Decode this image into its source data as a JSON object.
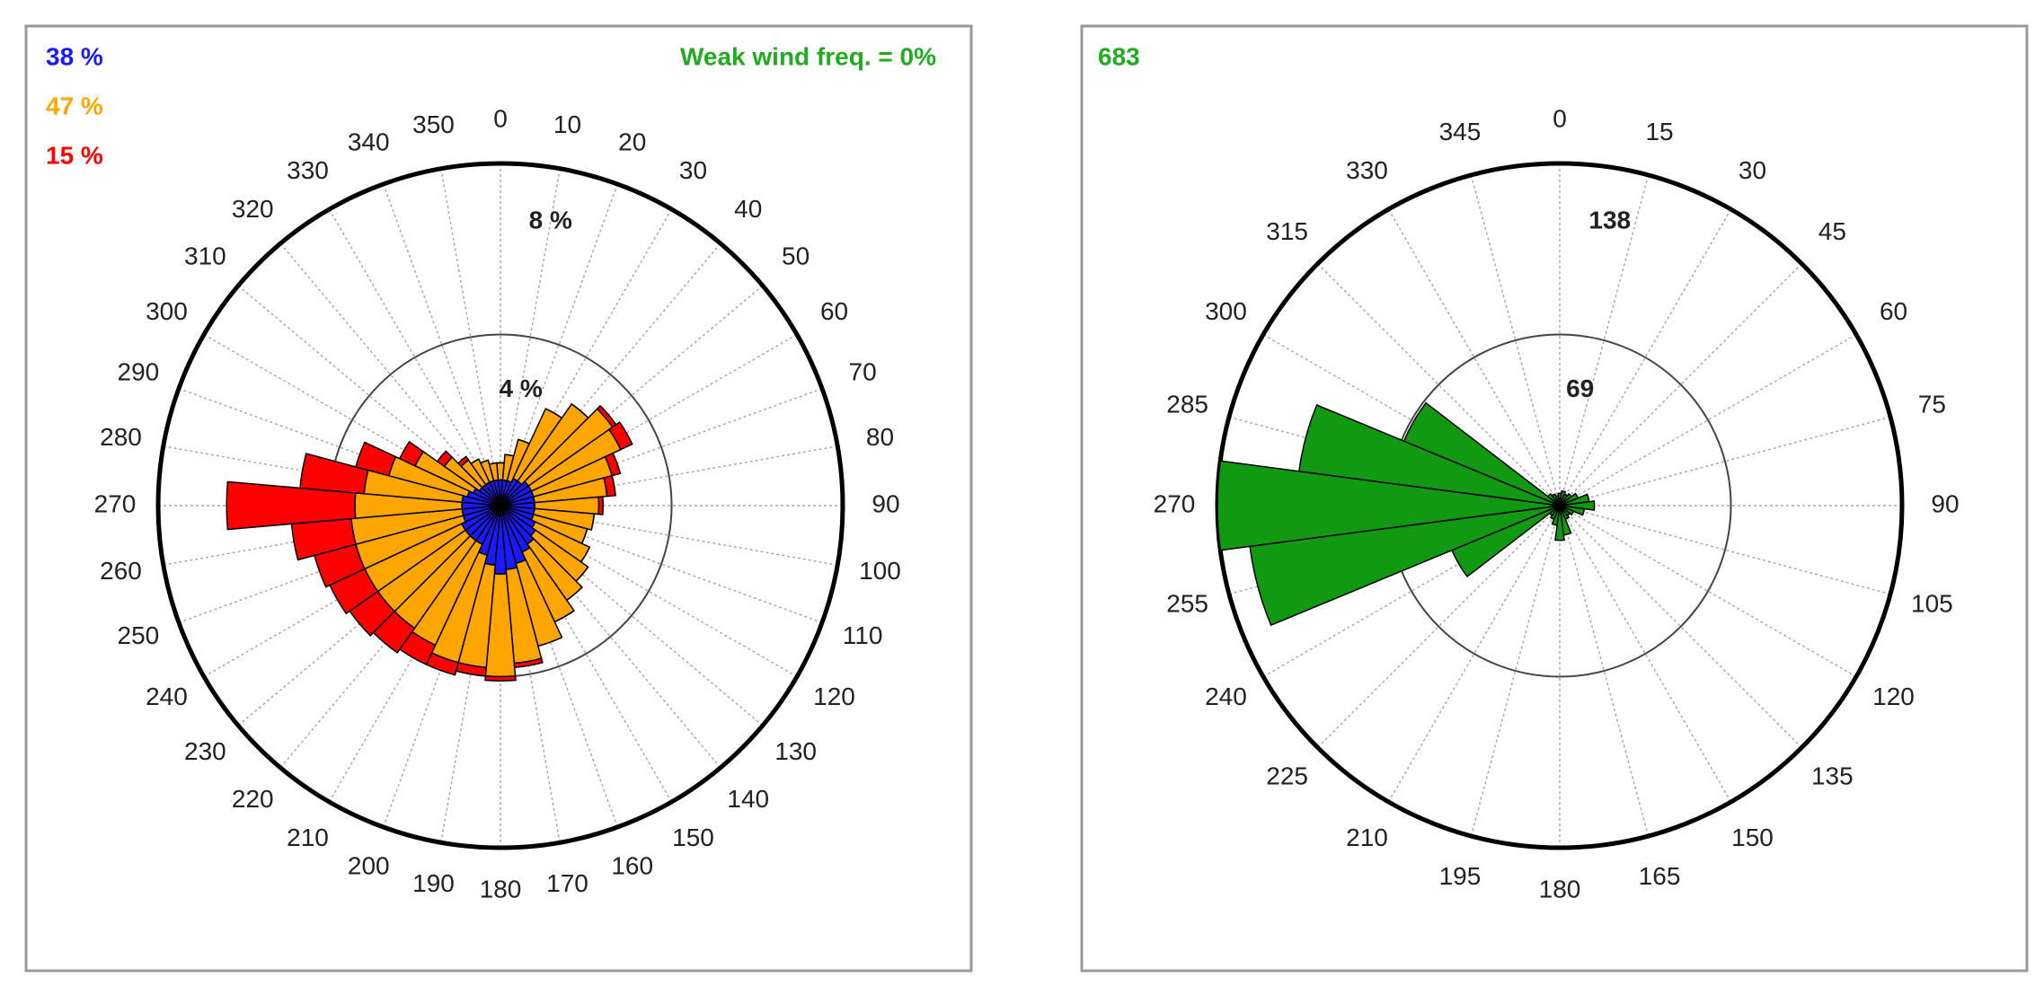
{
  "chart_data": [
    {
      "type": "windrose",
      "annotation": "Weak wind freq. = 0%",
      "categories": [
        0,
        10,
        20,
        30,
        40,
        50,
        60,
        70,
        80,
        90,
        100,
        110,
        120,
        130,
        140,
        150,
        160,
        170,
        180,
        190,
        200,
        210,
        220,
        230,
        240,
        250,
        260,
        270,
        280,
        290,
        300,
        310,
        320,
        330,
        340,
        350
      ],
      "series": [
        {
          "name": "38 %",
          "color": "#1a1aff",
          "values": [
            0.6,
            0.6,
            0.6,
            0.7,
            0.7,
            0.8,
            0.8,
            0.8,
            0.8,
            0.8,
            0.8,
            0.8,
            0.9,
            1.0,
            1.1,
            1.2,
            1.4,
            1.5,
            1.6,
            1.4,
            1.2,
            1.0,
            1.0,
            1.0,
            1.0,
            0.9,
            0.9,
            0.9,
            0.9,
            0.8,
            0.7,
            0.6,
            0.6,
            0.6,
            0.6,
            0.6
          ]
        },
        {
          "name": "47 %",
          "color": "#ffa500",
          "values": [
            0.4,
            0.6,
            1.0,
            1.8,
            2.2,
            2.4,
            2.3,
            1.9,
            1.7,
            1.5,
            1.4,
            1.3,
            1.4,
            1.5,
            1.6,
            1.8,
            2.0,
            2.2,
            2.4,
            2.4,
            2.6,
            2.6,
            2.5,
            2.5,
            2.5,
            2.6,
            2.6,
            2.5,
            2.3,
            1.9,
            1.5,
            1.0,
            0.7,
            0.6,
            0.5,
            0.4
          ]
        },
        {
          "name": "15 %",
          "color": "#ff0000",
          "values": [
            0,
            0,
            0,
            0,
            0,
            0.1,
            0.3,
            0.2,
            0.2,
            0.1,
            0,
            0,
            0,
            0,
            0,
            0,
            0,
            0.1,
            0.1,
            0.2,
            0.3,
            0.5,
            0.7,
            0.8,
            0.9,
            1.0,
            1.4,
            3.0,
            1.5,
            0.8,
            0.4,
            0.2,
            0.1,
            0,
            0,
            0
          ]
        }
      ],
      "rlim": [
        0,
        8
      ],
      "rticks": [
        {
          "value": 4,
          "label": "4 %"
        },
        {
          "value": 8,
          "label": "8 %"
        }
      ]
    },
    {
      "type": "windrose",
      "annotation": "683",
      "categories": [
        0,
        15,
        30,
        45,
        60,
        75,
        90,
        105,
        120,
        135,
        150,
        165,
        180,
        195,
        210,
        225,
        240,
        255,
        270,
        285,
        300,
        315,
        330,
        345
      ],
      "values": [
        5,
        6,
        5,
        6,
        8,
        12,
        14,
        10,
        6,
        5,
        6,
        12,
        14,
        8,
        6,
        5,
        47,
        126,
        138,
        106,
        68,
        6,
        5,
        4
      ],
      "color": "#119911",
      "rlim": [
        0,
        138
      ],
      "rticks": [
        69,
        138
      ]
    }
  ]
}
